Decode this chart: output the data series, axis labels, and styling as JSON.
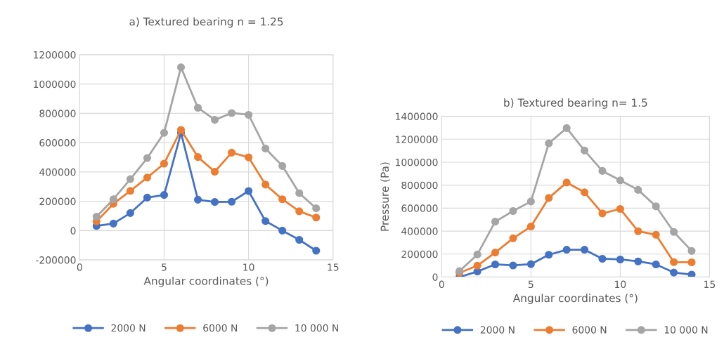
{
  "chart_data": [
    {
      "type": "line",
      "title": "a) Textured bearing n = 1.25",
      "xlabel": "Angular coordinates (°)",
      "x": [
        1,
        2,
        3,
        4,
        5,
        6,
        7,
        8,
        9,
        10,
        11,
        12,
        13,
        14
      ],
      "series": [
        {
          "name": "2000 N",
          "color": "#4472c4",
          "values": [
            32000,
            48000,
            120000,
            225000,
            243000,
            667000,
            211000,
            195000,
            197000,
            270000,
            65000,
            0,
            -63000,
            -137000
          ]
        },
        {
          "name": "6000 N",
          "color": "#ed7d31",
          "values": [
            63000,
            183000,
            271000,
            362000,
            457000,
            687000,
            502000,
            402000,
            532000,
            500000,
            314000,
            214000,
            132000,
            89000
          ]
        },
        {
          "name": "10 000 N",
          "color": "#a5a5a5",
          "values": [
            95000,
            214000,
            351000,
            495000,
            667000,
            1114000,
            838000,
            756000,
            802000,
            790000,
            560000,
            441000,
            256000,
            152000
          ]
        }
      ],
      "xlim": [
        0,
        15
      ],
      "xticks": [
        0,
        5,
        10,
        15
      ],
      "ylim": [
        -200000,
        1200000
      ],
      "yticks": [
        -200000,
        0,
        200000,
        400000,
        600000,
        800000,
        1000000,
        1200000
      ],
      "grid": true,
      "legend": "bottom",
      "marker": "circle",
      "line_style": "solid"
    },
    {
      "type": "line",
      "title": "b) Textured bearing n= 1.5",
      "xlabel": "Angular coordinates (°)",
      "ylabel": "Pressure (Pa)",
      "x": [
        1,
        2,
        3,
        4,
        5,
        6,
        7,
        8,
        9,
        10,
        11,
        12,
        13,
        14
      ],
      "series": [
        {
          "name": "2000 N",
          "color": "#4472c4",
          "values": [
            0,
            48000,
            110000,
            101000,
            112000,
            194000,
            238000,
            238000,
            159000,
            153000,
            136000,
            110000,
            39000,
            21000
          ]
        },
        {
          "name": "6000 N",
          "color": "#ed7d31",
          "values": [
            37000,
            99000,
            213000,
            337000,
            440000,
            689000,
            823000,
            738000,
            554000,
            593000,
            399000,
            368000,
            130000,
            128000
          ]
        },
        {
          "name": "10 000 N",
          "color": "#a5a5a5",
          "values": [
            52000,
            196000,
            482000,
            575000,
            658000,
            1164000,
            1297000,
            1102000,
            924000,
            842000,
            759000,
            616000,
            393000,
            227000
          ]
        }
      ],
      "xlim": [
        0,
        15
      ],
      "xticks": [
        0,
        5,
        10,
        15
      ],
      "ylim": [
        0,
        1400000
      ],
      "yticks": [
        0,
        200000,
        400000,
        600000,
        800000,
        1000000,
        1200000,
        1400000
      ],
      "grid": true,
      "legend": "bottom",
      "marker": "circle",
      "line_style": "solid"
    }
  ]
}
